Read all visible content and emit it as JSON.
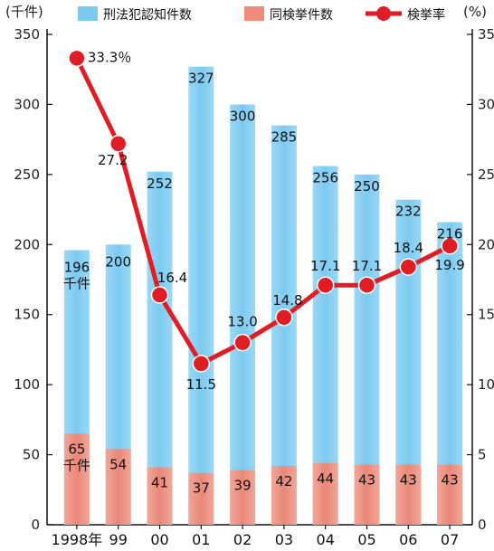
{
  "chart_data": {
    "type": "bar",
    "categories": [
      "1998年",
      "99",
      "00",
      "01",
      "02",
      "03",
      "04",
      "05",
      "06",
      "07"
    ],
    "series": [
      {
        "name": "刑法犯認知件数",
        "type": "bar",
        "axis": "left",
        "color": "#7ccaf0",
        "values": [
          196,
          200,
          252,
          327,
          300,
          285,
          256,
          250,
          232,
          216
        ],
        "labels": [
          "196",
          "200",
          "252",
          "327",
          "300",
          "285",
          "256",
          "250",
          "232",
          "216"
        ],
        "first_unit": "千件"
      },
      {
        "name": "同検挙件数",
        "type": "bar",
        "axis": "left",
        "color": "#f08a7a",
        "values": [
          65,
          54,
          41,
          37,
          39,
          42,
          44,
          43,
          43,
          43
        ],
        "labels": [
          "65",
          "54",
          "41",
          "37",
          "39",
          "42",
          "44",
          "43",
          "43",
          "43"
        ],
        "first_unit": "千件"
      },
      {
        "name": "検挙率",
        "type": "line",
        "axis": "right",
        "color": "#e01c24",
        "values": [
          33.3,
          27.2,
          16.4,
          11.5,
          13.0,
          14.8,
          17.1,
          17.1,
          18.4,
          19.9
        ],
        "labels": [
          "33.3％",
          "27.2",
          "16.4",
          "11.5",
          "13.0",
          "14.8",
          "17.1",
          "17.1",
          "18.4",
          "19.9"
        ]
      }
    ],
    "y_left": {
      "unit": "(千件)",
      "ylim": [
        0,
        350
      ],
      "ticks": [
        "0",
        "50",
        "100",
        "150",
        "200",
        "250",
        "300",
        "350"
      ]
    },
    "y_right": {
      "unit": "(%)",
      "ylim": [
        0,
        35
      ],
      "ticks": [
        "0",
        "5",
        "10",
        "15",
        "20",
        "25",
        "30",
        "35"
      ]
    },
    "legend": "top",
    "grid": false
  }
}
